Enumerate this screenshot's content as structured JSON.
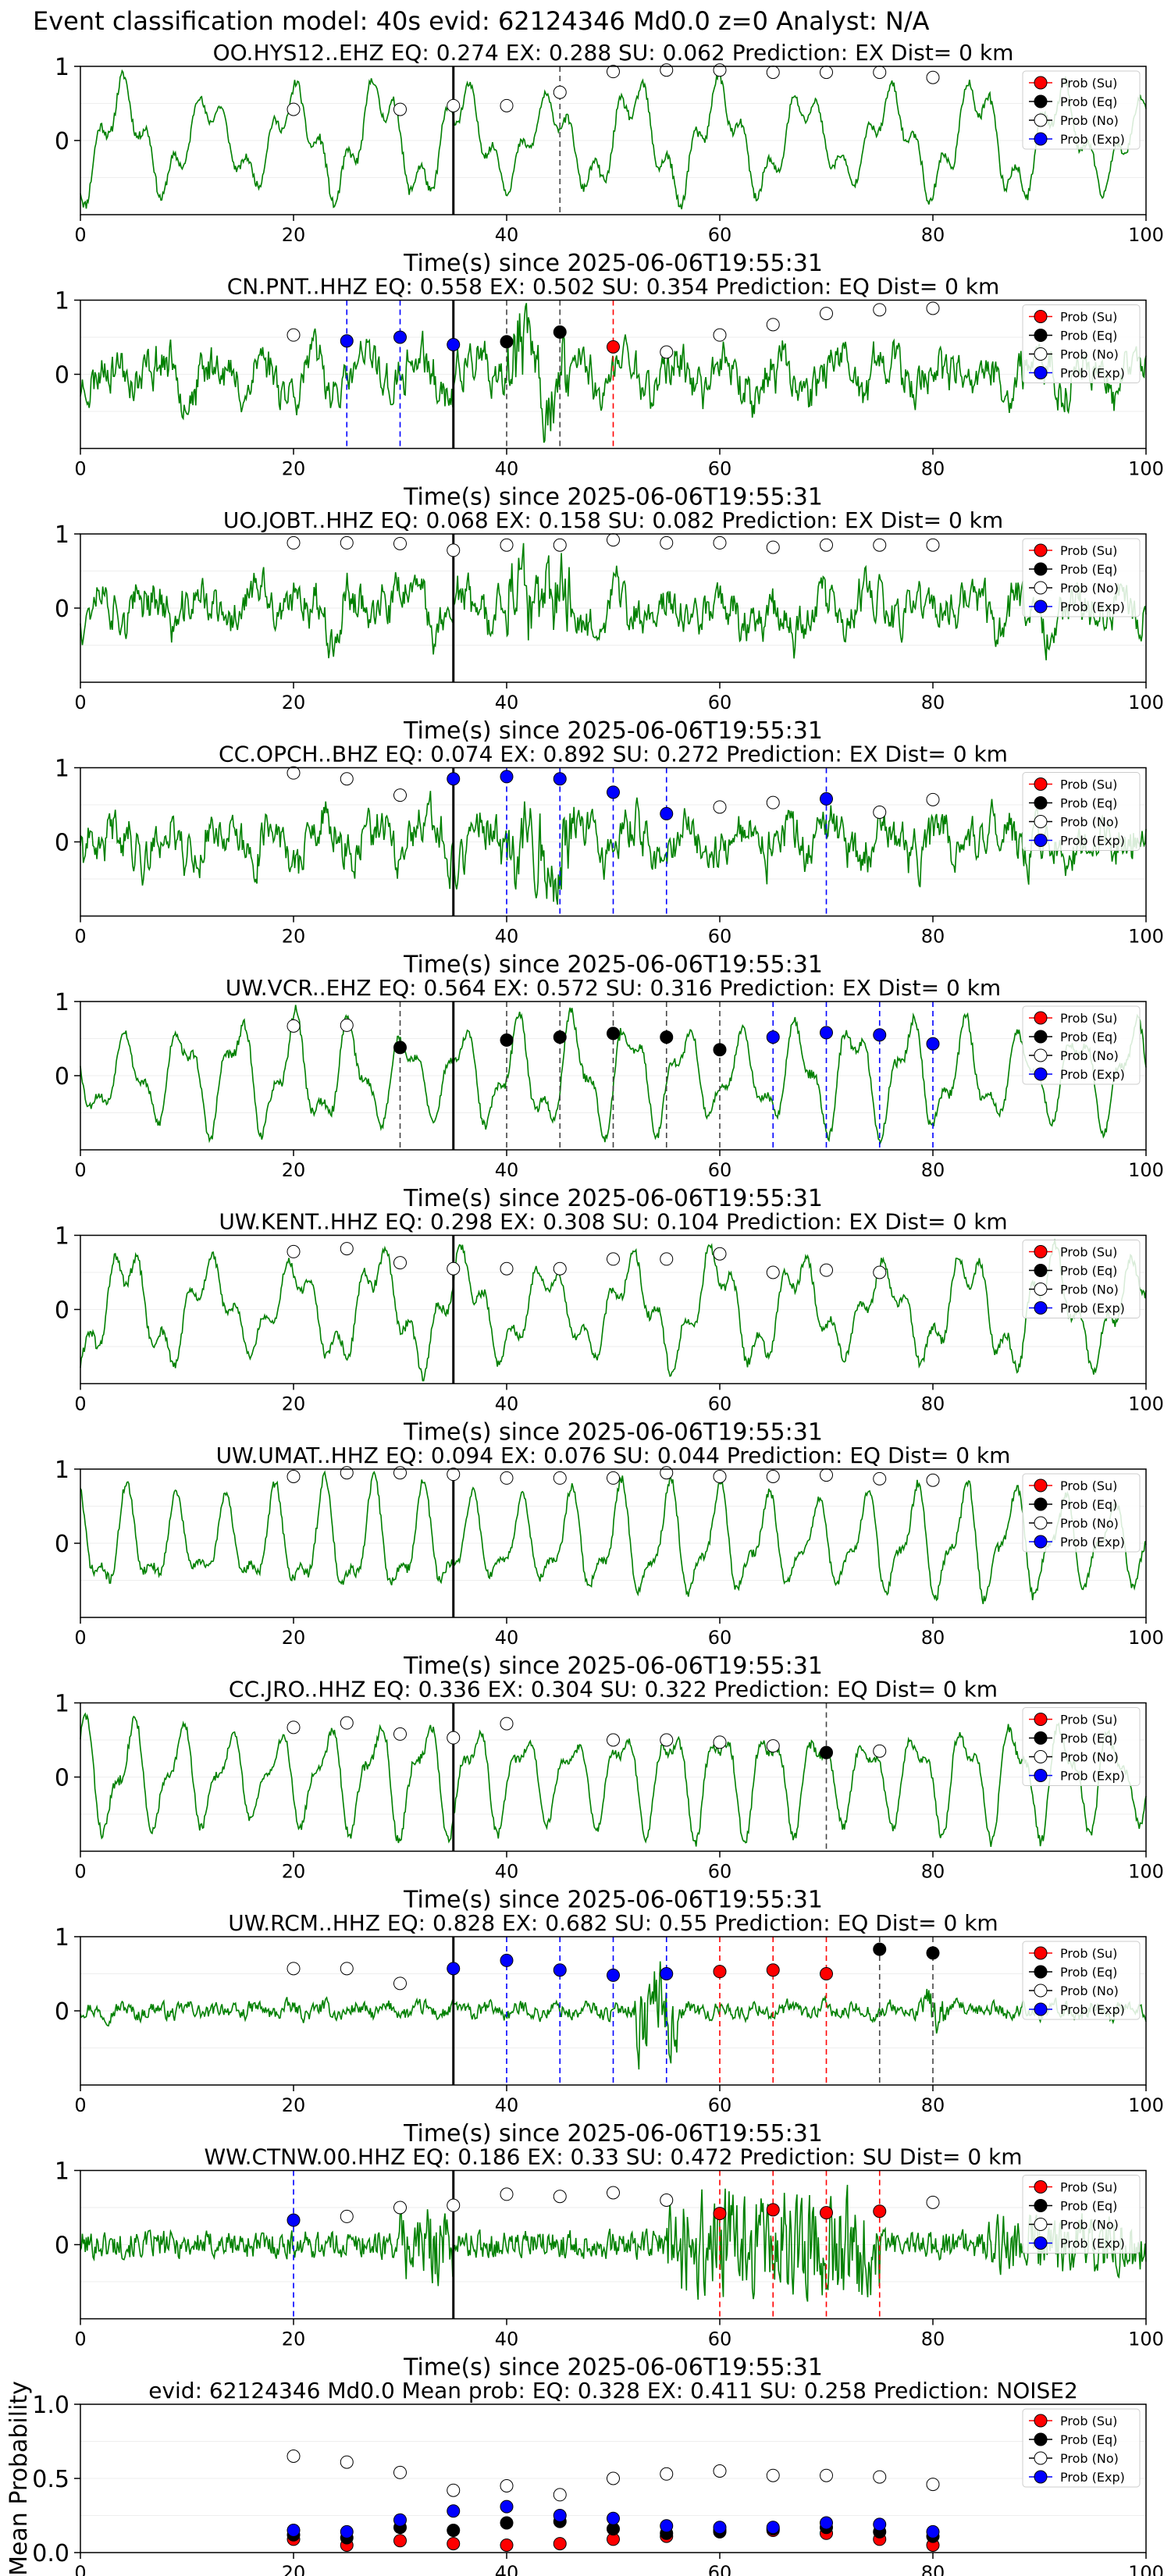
{
  "suptitle": "Event classification model: 40s evid: 62124346 Md0.0 z=0 Analyst: N/A",
  "colors": {
    "waveform": "#008000",
    "su": "#ff0000",
    "eq": "#000000",
    "no": "#ffffff",
    "exp": "#0000ff",
    "axis_black_line": "#000000"
  },
  "common": {
    "xlabel": "Time(s) since 2025-06-06T19:55:31",
    "xticks": [
      "0",
      "20",
      "40",
      "60",
      "80",
      "100"
    ],
    "xlim": [
      0,
      100
    ],
    "yticks": [
      "1",
      "0"
    ],
    "legend": [
      "Prob (Su)",
      "Prob (Eq)",
      "Prob (No)",
      "Prob (Exp)"
    ],
    "origin_line_x": 35
  },
  "chart_data": [
    {
      "type": "line",
      "title": "OO.HYS12..EHZ   EQ: 0.274   EX: 0.288   SU: 0.062   Prediction: EX    Dist= 0 km",
      "style": "smooth",
      "seed": 11,
      "points": [
        {
          "x": 20,
          "y": 0.42,
          "c": "no"
        },
        {
          "x": 30,
          "y": 0.42,
          "c": "no"
        },
        {
          "x": 35,
          "y": 0.47,
          "c": "no"
        },
        {
          "x": 40,
          "y": 0.47,
          "c": "no"
        },
        {
          "x": 45,
          "y": 0.65,
          "c": "no"
        },
        {
          "x": 50,
          "y": 0.93,
          "c": "no"
        },
        {
          "x": 55,
          "y": 0.95,
          "c": "no"
        },
        {
          "x": 60,
          "y": 0.95,
          "c": "no"
        },
        {
          "x": 65,
          "y": 0.92,
          "c": "no"
        },
        {
          "x": 70,
          "y": 0.92,
          "c": "no"
        },
        {
          "x": 75,
          "y": 0.92,
          "c": "no"
        },
        {
          "x": 80,
          "y": 0.85,
          "c": "no"
        }
      ],
      "vlines": [
        {
          "x": 45,
          "c": "eq"
        }
      ]
    },
    {
      "type": "line",
      "title": "CN.PNT..HHZ   EQ: 0.558  EX: 0.502  SU: 0.354   Prediction: EQ    Dist= 0 km",
      "style": "noisy",
      "seed": 23,
      "points": [
        {
          "x": 20,
          "y": 0.53,
          "c": "no"
        },
        {
          "x": 25,
          "y": 0.45,
          "c": "exp"
        },
        {
          "x": 30,
          "y": 0.5,
          "c": "exp"
        },
        {
          "x": 35,
          "y": 0.4,
          "c": "exp"
        },
        {
          "x": 40,
          "y": 0.44,
          "c": "eq"
        },
        {
          "x": 45,
          "y": 0.57,
          "c": "eq"
        },
        {
          "x": 50,
          "y": 0.37,
          "c": "su"
        },
        {
          "x": 55,
          "y": 0.3,
          "c": "no"
        },
        {
          "x": 60,
          "y": 0.53,
          "c": "no"
        },
        {
          "x": 65,
          "y": 0.67,
          "c": "no"
        },
        {
          "x": 70,
          "y": 0.82,
          "c": "no"
        },
        {
          "x": 75,
          "y": 0.87,
          "c": "no"
        },
        {
          "x": 80,
          "y": 0.89,
          "c": "no"
        }
      ],
      "vlines": [
        {
          "x": 25,
          "c": "exp"
        },
        {
          "x": 30,
          "c": "exp"
        },
        {
          "x": 40,
          "c": "eq"
        },
        {
          "x": 45,
          "c": "eq"
        },
        {
          "x": 50,
          "c": "su"
        }
      ]
    },
    {
      "type": "line",
      "title": "UO.JOBT..HHZ   EQ: 0.068  EX: 0.158  SU: 0.082   Prediction: EX    Dist= 0 km",
      "style": "noisy",
      "seed": 37,
      "points": [
        {
          "x": 20,
          "y": 0.88,
          "c": "no"
        },
        {
          "x": 25,
          "y": 0.88,
          "c": "no"
        },
        {
          "x": 30,
          "y": 0.87,
          "c": "no"
        },
        {
          "x": 35,
          "y": 0.78,
          "c": "no"
        },
        {
          "x": 40,
          "y": 0.85,
          "c": "no"
        },
        {
          "x": 45,
          "y": 0.85,
          "c": "no"
        },
        {
          "x": 50,
          "y": 0.92,
          "c": "no"
        },
        {
          "x": 55,
          "y": 0.88,
          "c": "no"
        },
        {
          "x": 60,
          "y": 0.88,
          "c": "no"
        },
        {
          "x": 65,
          "y": 0.82,
          "c": "no"
        },
        {
          "x": 70,
          "y": 0.85,
          "c": "no"
        },
        {
          "x": 75,
          "y": 0.85,
          "c": "no"
        },
        {
          "x": 80,
          "y": 0.85,
          "c": "no"
        }
      ],
      "vlines": []
    },
    {
      "type": "line",
      "title": "CC.OPCH..BHZ   EQ: 0.074  EX: 0.892  SU: 0.272   Prediction: EX    Dist= 0 km",
      "style": "noisy",
      "seed": 41,
      "points": [
        {
          "x": 20,
          "y": 0.93,
          "c": "no"
        },
        {
          "x": 25,
          "y": 0.85,
          "c": "no"
        },
        {
          "x": 30,
          "y": 0.63,
          "c": "no"
        },
        {
          "x": 35,
          "y": 0.85,
          "c": "exp"
        },
        {
          "x": 40,
          "y": 0.88,
          "c": "exp"
        },
        {
          "x": 45,
          "y": 0.85,
          "c": "exp"
        },
        {
          "x": 50,
          "y": 0.67,
          "c": "exp"
        },
        {
          "x": 55,
          "y": 0.38,
          "c": "exp"
        },
        {
          "x": 60,
          "y": 0.47,
          "c": "no"
        },
        {
          "x": 65,
          "y": 0.53,
          "c": "no"
        },
        {
          "x": 70,
          "y": 0.58,
          "c": "exp"
        },
        {
          "x": 75,
          "y": 0.4,
          "c": "no"
        },
        {
          "x": 80,
          "y": 0.57,
          "c": "no"
        }
      ],
      "vlines": [
        {
          "x": 40,
          "c": "exp"
        },
        {
          "x": 45,
          "c": "exp"
        },
        {
          "x": 50,
          "c": "exp"
        },
        {
          "x": 55,
          "c": "exp"
        },
        {
          "x": 70,
          "c": "exp"
        }
      ]
    },
    {
      "type": "line",
      "title": "UW.VCR..EHZ   EQ: 0.564  EX: 0.572  SU: 0.316   Prediction: EX    Dist= 0 km",
      "style": "smooth",
      "seed": 53,
      "points": [
        {
          "x": 20,
          "y": 0.67,
          "c": "no"
        },
        {
          "x": 25,
          "y": 0.68,
          "c": "no"
        },
        {
          "x": 30,
          "y": 0.38,
          "c": "eq"
        },
        {
          "x": 40,
          "y": 0.48,
          "c": "eq"
        },
        {
          "x": 45,
          "y": 0.52,
          "c": "eq"
        },
        {
          "x": 50,
          "y": 0.57,
          "c": "eq"
        },
        {
          "x": 55,
          "y": 0.52,
          "c": "eq"
        },
        {
          "x": 60,
          "y": 0.35,
          "c": "eq"
        },
        {
          "x": 65,
          "y": 0.52,
          "c": "exp"
        },
        {
          "x": 70,
          "y": 0.58,
          "c": "exp"
        },
        {
          "x": 75,
          "y": 0.55,
          "c": "exp"
        },
        {
          "x": 80,
          "y": 0.43,
          "c": "exp"
        }
      ],
      "vlines": [
        {
          "x": 30,
          "c": "eq"
        },
        {
          "x": 40,
          "c": "eq"
        },
        {
          "x": 45,
          "c": "eq"
        },
        {
          "x": 50,
          "c": "eq"
        },
        {
          "x": 55,
          "c": "eq"
        },
        {
          "x": 60,
          "c": "eq"
        },
        {
          "x": 65,
          "c": "exp"
        },
        {
          "x": 70,
          "c": "exp"
        },
        {
          "x": 75,
          "c": "exp"
        },
        {
          "x": 80,
          "c": "exp"
        }
      ]
    },
    {
      "type": "line",
      "title": "UW.KENT..HHZ   EQ: 0.298  EX: 0.308  SU: 0.104   Prediction: EX    Dist= 0 km",
      "style": "smooth",
      "seed": 61,
      "points": [
        {
          "x": 20,
          "y": 0.78,
          "c": "no"
        },
        {
          "x": 25,
          "y": 0.82,
          "c": "no"
        },
        {
          "x": 30,
          "y": 0.63,
          "c": "no"
        },
        {
          "x": 35,
          "y": 0.55,
          "c": "no"
        },
        {
          "x": 40,
          "y": 0.55,
          "c": "no"
        },
        {
          "x": 45,
          "y": 0.55,
          "c": "no"
        },
        {
          "x": 50,
          "y": 0.68,
          "c": "no"
        },
        {
          "x": 55,
          "y": 0.68,
          "c": "no"
        },
        {
          "x": 60,
          "y": 0.75,
          "c": "no"
        },
        {
          "x": 65,
          "y": 0.5,
          "c": "no"
        },
        {
          "x": 70,
          "y": 0.53,
          "c": "no"
        },
        {
          "x": 75,
          "y": 0.5,
          "c": "no"
        }
      ],
      "vlines": []
    },
    {
      "type": "line",
      "title": "UW.UMAT..HHZ   EQ: 0.094  EX: 0.076  SU: 0.044   Prediction: EQ    Dist= 0 km",
      "style": "smooth",
      "seed": 71,
      "points": [
        {
          "x": 20,
          "y": 0.9,
          "c": "no"
        },
        {
          "x": 25,
          "y": 0.95,
          "c": "no"
        },
        {
          "x": 30,
          "y": 0.95,
          "c": "no"
        },
        {
          "x": 35,
          "y": 0.93,
          "c": "no"
        },
        {
          "x": 40,
          "y": 0.88,
          "c": "no"
        },
        {
          "x": 45,
          "y": 0.88,
          "c": "no"
        },
        {
          "x": 50,
          "y": 0.88,
          "c": "no"
        },
        {
          "x": 55,
          "y": 0.95,
          "c": "no"
        },
        {
          "x": 60,
          "y": 0.9,
          "c": "no"
        },
        {
          "x": 65,
          "y": 0.9,
          "c": "no"
        },
        {
          "x": 70,
          "y": 0.92,
          "c": "no"
        },
        {
          "x": 75,
          "y": 0.87,
          "c": "no"
        },
        {
          "x": 80,
          "y": 0.85,
          "c": "no"
        }
      ],
      "vlines": []
    },
    {
      "type": "line",
      "title": "CC.JRO..HHZ   EQ: 0.336  EX: 0.304  SU: 0.322   Prediction: EQ    Dist= 0 km",
      "style": "smooth",
      "seed": 83,
      "points": [
        {
          "x": 20,
          "y": 0.67,
          "c": "no"
        },
        {
          "x": 25,
          "y": 0.73,
          "c": "no"
        },
        {
          "x": 30,
          "y": 0.58,
          "c": "no"
        },
        {
          "x": 35,
          "y": 0.53,
          "c": "no"
        },
        {
          "x": 40,
          "y": 0.72,
          "c": "no"
        },
        {
          "x": 50,
          "y": 0.5,
          "c": "no"
        },
        {
          "x": 55,
          "y": 0.5,
          "c": "no"
        },
        {
          "x": 60,
          "y": 0.47,
          "c": "no"
        },
        {
          "x": 65,
          "y": 0.42,
          "c": "no"
        },
        {
          "x": 70,
          "y": 0.33,
          "c": "eq"
        },
        {
          "x": 75,
          "y": 0.35,
          "c": "no"
        }
      ],
      "vlines": [
        {
          "x": 70,
          "c": "eq"
        }
      ]
    },
    {
      "type": "line",
      "title": "UW.RCM..HHZ   EQ: 0.828  EX: 0.682  SU: 0.55   Prediction: EQ    Dist= 0 km",
      "style": "quiet",
      "seed": 97,
      "points": [
        {
          "x": 20,
          "y": 0.57,
          "c": "no"
        },
        {
          "x": 25,
          "y": 0.57,
          "c": "no"
        },
        {
          "x": 30,
          "y": 0.37,
          "c": "no"
        },
        {
          "x": 35,
          "y": 0.57,
          "c": "exp"
        },
        {
          "x": 40,
          "y": 0.68,
          "c": "exp"
        },
        {
          "x": 45,
          "y": 0.55,
          "c": "exp"
        },
        {
          "x": 50,
          "y": 0.48,
          "c": "exp"
        },
        {
          "x": 55,
          "y": 0.5,
          "c": "exp"
        },
        {
          "x": 60,
          "y": 0.53,
          "c": "su"
        },
        {
          "x": 65,
          "y": 0.55,
          "c": "su"
        },
        {
          "x": 70,
          "y": 0.5,
          "c": "su"
        },
        {
          "x": 75,
          "y": 0.83,
          "c": "eq"
        },
        {
          "x": 80,
          "y": 0.78,
          "c": "eq"
        }
      ],
      "vlines": [
        {
          "x": 40,
          "c": "exp"
        },
        {
          "x": 45,
          "c": "exp"
        },
        {
          "x": 50,
          "c": "exp"
        },
        {
          "x": 55,
          "c": "exp"
        },
        {
          "x": 60,
          "c": "su"
        },
        {
          "x": 65,
          "c": "su"
        },
        {
          "x": 70,
          "c": "su"
        },
        {
          "x": 75,
          "c": "eq"
        },
        {
          "x": 80,
          "c": "eq"
        }
      ]
    },
    {
      "type": "line",
      "title": "WW.CTNW.00.HHZ   EQ: 0.186  EX: 0.33  SU: 0.472   Prediction: SU    Dist= 0 km",
      "style": "burst",
      "seed": 101,
      "points": [
        {
          "x": 20,
          "y": 0.33,
          "c": "exp"
        },
        {
          "x": 25,
          "y": 0.38,
          "c": "no"
        },
        {
          "x": 30,
          "y": 0.5,
          "c": "no"
        },
        {
          "x": 35,
          "y": 0.53,
          "c": "no"
        },
        {
          "x": 40,
          "y": 0.68,
          "c": "no"
        },
        {
          "x": 45,
          "y": 0.65,
          "c": "no"
        },
        {
          "x": 50,
          "y": 0.7,
          "c": "no"
        },
        {
          "x": 55,
          "y": 0.6,
          "c": "no"
        },
        {
          "x": 60,
          "y": 0.42,
          "c": "su"
        },
        {
          "x": 65,
          "y": 0.47,
          "c": "su"
        },
        {
          "x": 70,
          "y": 0.43,
          "c": "su"
        },
        {
          "x": 75,
          "y": 0.45,
          "c": "su"
        },
        {
          "x": 80,
          "y": 0.57,
          "c": "no"
        }
      ],
      "vlines": [
        {
          "x": 20,
          "c": "exp"
        },
        {
          "x": 60,
          "c": "su"
        },
        {
          "x": 65,
          "c": "su"
        },
        {
          "x": 70,
          "c": "su"
        },
        {
          "x": 75,
          "c": "su"
        }
      ]
    },
    {
      "type": "scatter",
      "title": "evid: 62124346  Md0.0   Mean prob:   EQ: 0.328  EX: 0.411  SU: 0.258   Prediction: NOISE2",
      "ylabel": "Mean Probability",
      "ylim": [
        0,
        1
      ],
      "yticks": [
        "1.0",
        "0.5",
        "0.0"
      ],
      "series": [
        {
          "name": "Prob (Su)",
          "c": "su",
          "x": [
            20,
            25,
            30,
            35,
            40,
            45,
            50,
            55,
            60,
            65,
            70,
            75,
            80
          ],
          "values": [
            0.09,
            0.05,
            0.08,
            0.06,
            0.05,
            0.06,
            0.09,
            0.11,
            0.15,
            0.15,
            0.13,
            0.09,
            0.05
          ]
        },
        {
          "name": "Prob (Eq)",
          "c": "eq",
          "x": [
            20,
            25,
            30,
            35,
            40,
            45,
            50,
            55,
            60,
            65,
            70,
            75,
            80
          ],
          "values": [
            0.12,
            0.1,
            0.17,
            0.15,
            0.2,
            0.21,
            0.16,
            0.13,
            0.14,
            0.16,
            0.17,
            0.14,
            0.11
          ]
        },
        {
          "name": "Prob (No)",
          "c": "no",
          "x": [
            20,
            25,
            30,
            35,
            40,
            45,
            50,
            55,
            60,
            65,
            70,
            75,
            80
          ],
          "values": [
            0.65,
            0.61,
            0.54,
            0.42,
            0.45,
            0.39,
            0.5,
            0.53,
            0.55,
            0.52,
            0.52,
            0.51,
            0.46
          ]
        },
        {
          "name": "Prob (Exp)",
          "c": "exp",
          "x": [
            20,
            25,
            30,
            35,
            40,
            45,
            50,
            55,
            60,
            65,
            70,
            75,
            80
          ],
          "values": [
            0.15,
            0.14,
            0.22,
            0.28,
            0.31,
            0.25,
            0.23,
            0.18,
            0.17,
            0.17,
            0.2,
            0.19,
            0.14
          ]
        }
      ]
    }
  ]
}
